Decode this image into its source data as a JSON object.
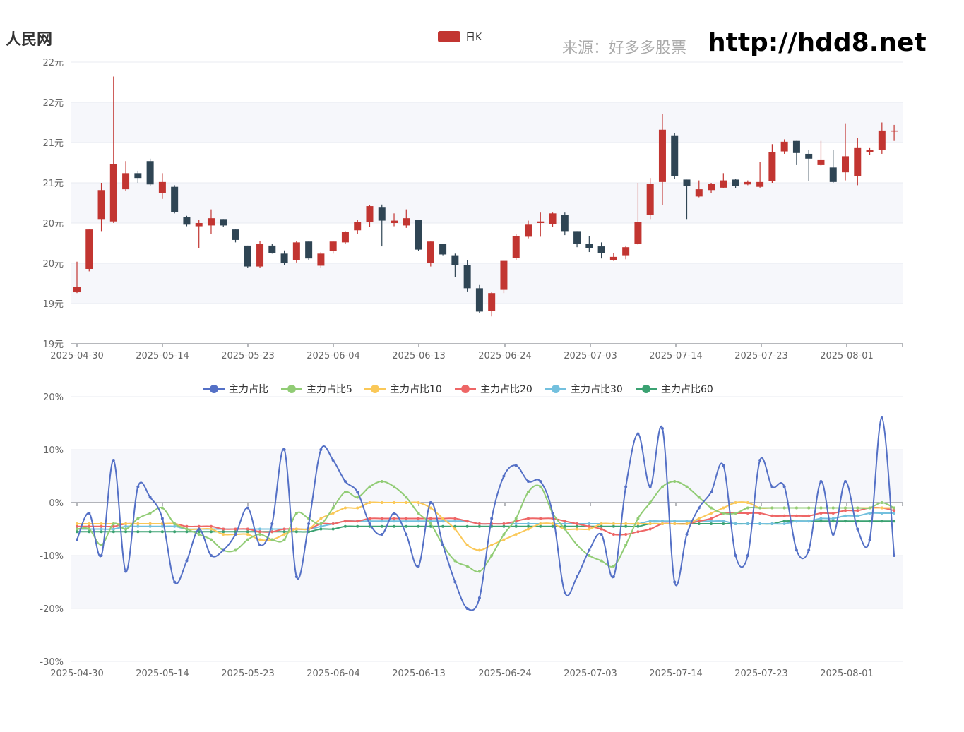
{
  "header": {
    "brand": "人民网",
    "source": "来源：好多多股票",
    "url": "http://hdd8.net"
  },
  "chart_data": [
    {
      "type": "candlestick",
      "legend": [
        "日K"
      ],
      "legend_placement": "top-center",
      "colors": {
        "up": "#c23531",
        "down": "#2f4554"
      },
      "x_tick_labels": [
        "2025-04-30",
        "2025-05-14",
        "2025-05-23",
        "2025-06-04",
        "2025-06-13",
        "2025-06-24",
        "2025-07-03",
        "2025-07-14",
        "2025-07-23",
        "2025-08-01"
      ],
      "y_tick_labels": [
        "19元",
        "19元",
        "20元",
        "20元",
        "21元",
        "21元",
        "22元",
        "22元"
      ],
      "ylim": [
        19.0,
        22.5
      ],
      "grid": "horizontal-bands",
      "ohlc": [
        [
          19.64,
          19.71,
          19.63,
          20.02
        ],
        [
          19.93,
          20.42,
          19.9,
          20.42
        ],
        [
          20.55,
          20.91,
          20.4,
          21.0
        ],
        [
          20.52,
          21.23,
          20.5,
          22.32
        ],
        [
          20.92,
          21.12,
          20.9,
          21.27
        ],
        [
          21.12,
          21.06,
          21.0,
          21.15
        ],
        [
          21.27,
          20.98,
          20.96,
          21.3
        ],
        [
          20.87,
          21.01,
          20.8,
          21.12
        ],
        [
          20.95,
          20.64,
          20.62,
          20.97
        ],
        [
          20.57,
          20.48,
          20.46,
          20.59
        ],
        [
          20.46,
          20.5,
          20.19,
          20.54
        ],
        [
          20.47,
          20.56,
          20.36,
          20.67
        ],
        [
          20.55,
          20.47,
          20.45,
          20.55
        ],
        [
          20.42,
          20.29,
          20.26,
          20.42
        ],
        [
          20.22,
          19.96,
          19.94,
          20.22
        ],
        [
          19.96,
          20.24,
          19.94,
          20.28
        ],
        [
          20.22,
          20.13,
          20.12,
          20.24
        ],
        [
          20.12,
          20.0,
          19.98,
          20.16
        ],
        [
          20.04,
          20.26,
          20.01,
          20.28
        ],
        [
          20.27,
          20.06,
          20.04,
          20.27
        ],
        [
          19.97,
          20.12,
          19.94,
          20.14
        ],
        [
          20.15,
          20.27,
          20.12,
          20.27
        ],
        [
          20.26,
          20.39,
          20.24,
          20.4
        ],
        [
          20.41,
          20.51,
          20.36,
          20.54
        ],
        [
          20.51,
          20.71,
          20.45,
          20.72
        ],
        [
          20.7,
          20.53,
          20.21,
          20.73
        ],
        [
          20.5,
          20.53,
          20.46,
          20.62
        ],
        [
          20.47,
          20.56,
          20.44,
          20.67
        ],
        [
          20.54,
          20.17,
          20.15,
          20.54
        ],
        [
          20.0,
          20.27,
          19.96,
          20.27
        ],
        [
          20.24,
          20.11,
          20.1,
          20.24
        ],
        [
          20.1,
          19.98,
          19.83,
          20.12
        ],
        [
          19.98,
          19.69,
          19.65,
          20.04
        ],
        [
          19.69,
          19.4,
          19.38,
          19.73
        ],
        [
          19.41,
          19.63,
          19.34,
          19.64
        ],
        [
          19.67,
          20.03,
          19.63,
          20.03
        ],
        [
          20.07,
          20.34,
          20.04,
          20.36
        ],
        [
          20.33,
          20.48,
          20.31,
          20.53
        ],
        [
          20.5,
          20.52,
          20.33,
          20.63
        ],
        [
          20.49,
          20.62,
          20.45,
          20.63
        ],
        [
          20.6,
          20.4,
          20.35,
          20.63
        ],
        [
          20.4,
          20.24,
          20.2,
          20.4
        ],
        [
          20.24,
          20.19,
          20.14,
          20.34
        ],
        [
          20.21,
          20.13,
          20.06,
          20.26
        ],
        [
          20.04,
          20.08,
          20.03,
          20.13
        ],
        [
          20.1,
          20.2,
          20.05,
          20.22
        ],
        [
          20.24,
          20.51,
          20.23,
          21.0
        ],
        [
          20.6,
          20.99,
          20.55,
          21.06
        ],
        [
          21.01,
          21.66,
          20.72,
          21.86
        ],
        [
          21.59,
          21.08,
          21.05,
          21.62
        ],
        [
          21.04,
          20.96,
          20.55,
          21.04
        ],
        [
          20.83,
          20.92,
          20.82,
          21.03
        ],
        [
          20.91,
          20.99,
          20.87,
          21.0
        ],
        [
          20.94,
          21.03,
          20.93,
          21.12
        ],
        [
          21.04,
          20.96,
          20.93,
          21.05
        ],
        [
          20.98,
          21.01,
          20.97,
          21.03
        ],
        [
          20.95,
          21.01,
          20.94,
          21.26
        ],
        [
          21.02,
          21.38,
          21.0,
          21.48
        ],
        [
          21.39,
          21.51,
          21.36,
          21.54
        ],
        [
          21.52,
          21.37,
          21.22,
          21.52
        ],
        [
          21.36,
          21.3,
          21.02,
          21.41
        ],
        [
          21.22,
          21.29,
          21.21,
          21.52
        ],
        [
          21.19,
          21.01,
          21.0,
          21.41
        ],
        [
          21.13,
          21.33,
          21.03,
          21.74
        ],
        [
          21.08,
          21.44,
          20.97,
          21.56
        ],
        [
          21.38,
          21.41,
          21.35,
          21.44
        ],
        [
          21.41,
          21.65,
          21.36,
          21.75
        ],
        [
          21.65,
          21.65,
          21.52,
          21.72
        ]
      ]
    },
    {
      "type": "line",
      "smooth": true,
      "legend_placement": "top-center",
      "x_tick_labels": [
        "2025-04-30",
        "2025-05-14",
        "2025-05-23",
        "2025-06-04",
        "2025-06-13",
        "2025-06-24",
        "2025-07-03",
        "2025-07-14",
        "2025-07-23",
        "2025-08-01"
      ],
      "y_tick_labels": [
        "-30%",
        "-20%",
        "-10%",
        "0%",
        "10%",
        "20%"
      ],
      "ylim": [
        -30,
        20
      ],
      "grid": "horizontal-bands",
      "series": [
        {
          "name": "主力占比",
          "color": "#5470c6",
          "values": [
            -7,
            -2,
            -10,
            8,
            -13,
            3,
            1,
            -3,
            -15,
            -11,
            -5,
            -10,
            -9,
            -6,
            -1,
            -8,
            -4,
            10,
            -14,
            -4,
            10,
            8,
            4,
            2,
            -4,
            -6,
            -2,
            -6,
            -12,
            0,
            -8,
            -15,
            -20,
            -18,
            -3,
            5,
            7,
            4,
            4,
            -2,
            -17,
            -14,
            -9,
            -6,
            -14,
            3,
            13,
            3,
            14,
            -15,
            -6,
            -1,
            2,
            7,
            -10,
            -10,
            8,
            3,
            3,
            -9,
            -9,
            4,
            -6,
            4,
            -5,
            -7,
            16,
            -10
          ]
        },
        {
          "name": "主力占比5",
          "color": "#91cc75",
          "values": [
            -5,
            -5,
            -8,
            -4,
            -5,
            -3,
            -2,
            -1,
            -4,
            -5,
            -6,
            -7,
            -9,
            -9,
            -7,
            -6,
            -7,
            -7,
            -2,
            -3,
            -4,
            -1,
            2,
            1,
            3,
            4,
            3,
            1,
            -2,
            -4,
            -8,
            -11,
            -12,
            -13,
            -10,
            -6,
            -3,
            2,
            3,
            -2,
            -5,
            -8,
            -10,
            -11,
            -12,
            -8,
            -3,
            0,
            3,
            4,
            3,
            1,
            -1,
            -2,
            -2,
            -1,
            -1,
            -1,
            -1,
            -1,
            -1,
            -1,
            -1,
            -1,
            -1,
            -1,
            0,
            -1
          ]
        },
        {
          "name": "主力占比10",
          "color": "#fac858",
          "values": [
            -4,
            -4,
            -4,
            -4,
            -4,
            -4,
            -4,
            -4,
            -4,
            -5,
            -5,
            -5,
            -6,
            -6,
            -6,
            -7,
            -7,
            -6,
            -5,
            -5,
            -3,
            -2,
            -1,
            -1,
            0,
            0,
            0,
            0,
            0,
            -1,
            -3,
            -5,
            -8,
            -9,
            -8,
            -7,
            -6,
            -5,
            -4,
            -4,
            -5,
            -5,
            -5,
            -4,
            -4,
            -4,
            -4,
            -4,
            -4,
            -4,
            -4,
            -3,
            -2,
            -1,
            0,
            0,
            -1,
            -1,
            -1,
            -1,
            -1,
            -1,
            -1,
            -1,
            -1,
            -1,
            -1,
            -1
          ]
        },
        {
          "name": "主力占比20",
          "color": "#ee6666",
          "values": [
            -4.5,
            -4.5,
            -4.5,
            -4.5,
            -4,
            -4,
            -4,
            -4,
            -4,
            -4.5,
            -4.5,
            -4.5,
            -5,
            -5,
            -5,
            -5.5,
            -5.5,
            -5,
            -5,
            -5,
            -4,
            -4,
            -3.5,
            -3.5,
            -3,
            -3,
            -3,
            -3,
            -3,
            -3,
            -3,
            -3,
            -3.5,
            -4,
            -4,
            -4,
            -3.5,
            -3,
            -3,
            -3,
            -3.5,
            -4,
            -4.5,
            -5,
            -6,
            -6,
            -5.5,
            -5,
            -4,
            -4,
            -4,
            -3.5,
            -3,
            -2,
            -2,
            -2,
            -2,
            -2.5,
            -2.5,
            -2.5,
            -2.5,
            -2,
            -2,
            -1.5,
            -1.5,
            -1,
            -1,
            -1.5
          ]
        },
        {
          "name": "主力占比30",
          "color": "#73c0de",
          "values": [
            -5,
            -5,
            -5,
            -5,
            -4.5,
            -4.5,
            -4.5,
            -4.5,
            -4.5,
            -5,
            -5,
            -5,
            -5,
            -5,
            -5,
            -5,
            -5,
            -5,
            -5,
            -5,
            -4.5,
            -4,
            -3.5,
            -3.5,
            -3.5,
            -3.5,
            -3.5,
            -3.5,
            -3.5,
            -3.5,
            -3.5,
            -3.5,
            -3.5,
            -4,
            -4,
            -4,
            -4,
            -4,
            -4,
            -4,
            -4,
            -4,
            -4,
            -4,
            -4,
            -4,
            -4,
            -3.5,
            -3.5,
            -3.5,
            -3.5,
            -3.5,
            -3.5,
            -3.5,
            -4,
            -4,
            -4,
            -4,
            -4,
            -3.5,
            -3.5,
            -3,
            -3,
            -2.5,
            -2.5,
            -2,
            -2,
            -2
          ]
        },
        {
          "name": "主力占比60",
          "color": "#3ba272",
          "values": [
            -5.5,
            -5.5,
            -5.5,
            -5.5,
            -5.5,
            -5.5,
            -5.5,
            -5.5,
            -5.5,
            -5.5,
            -5.5,
            -5.5,
            -5.5,
            -5.5,
            -5.5,
            -5.5,
            -5.5,
            -5.5,
            -5.5,
            -5.5,
            -5,
            -5,
            -4.5,
            -4.5,
            -4.5,
            -4.5,
            -4.5,
            -4.5,
            -4.5,
            -4.5,
            -4.5,
            -4.5,
            -4.5,
            -4.5,
            -4.5,
            -4.5,
            -4.5,
            -4.5,
            -4.5,
            -4.5,
            -4.5,
            -4.5,
            -4.5,
            -4.5,
            -4.5,
            -4.5,
            -4.5,
            -4,
            -4,
            -4,
            -4,
            -4,
            -4,
            -4,
            -4,
            -4,
            -4,
            -4,
            -3.5,
            -3.5,
            -3.5,
            -3.5,
            -3.5,
            -3.5,
            -3.5,
            -3.5,
            -3.5,
            -3.5
          ]
        }
      ]
    }
  ]
}
